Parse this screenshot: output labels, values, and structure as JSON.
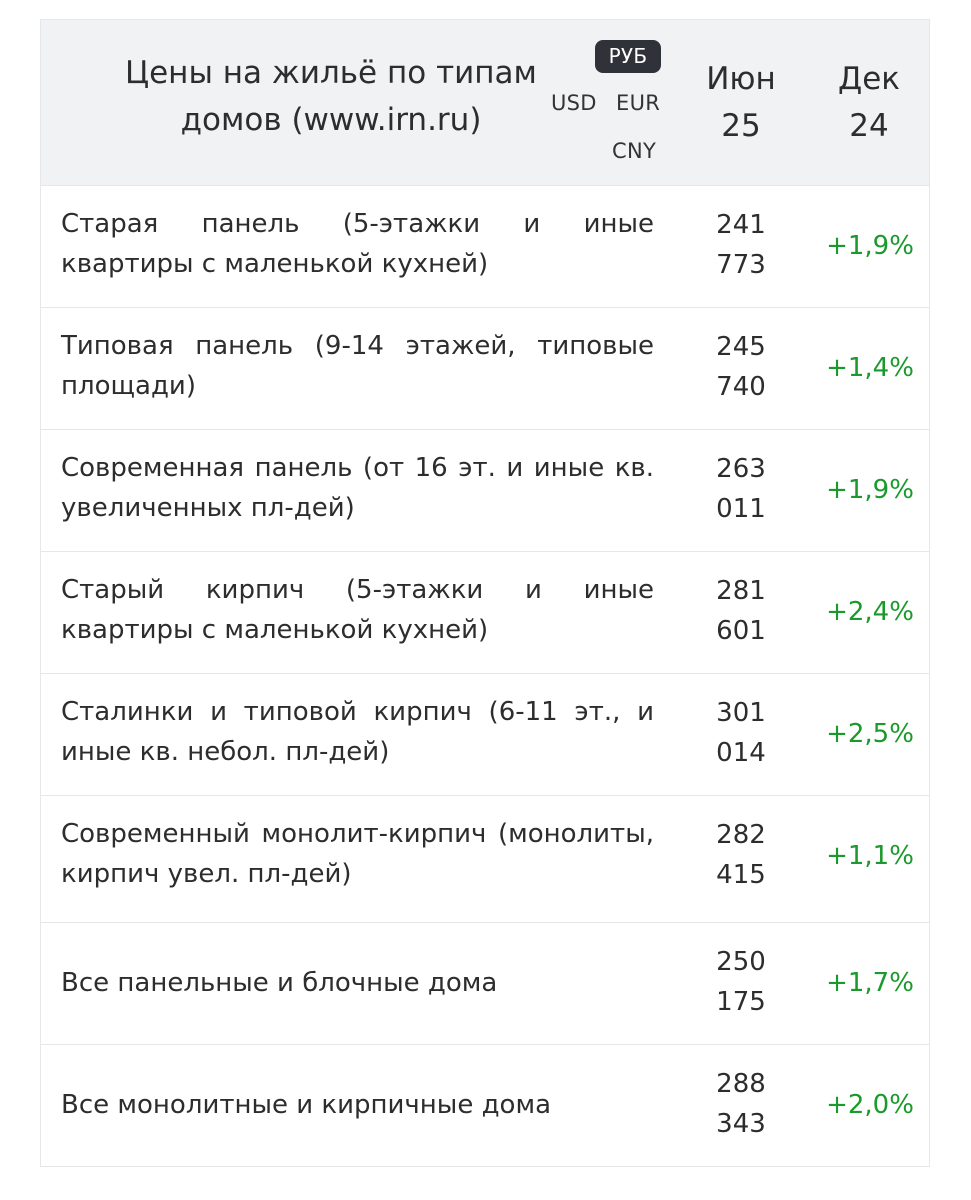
{
  "header": {
    "title": "Цены на жильё по типам домов (www.irn.ru)",
    "currencies": {
      "rub": "РУБ",
      "usd": "USD",
      "eur": "EUR",
      "cny": "CNY"
    },
    "columns": {
      "current": "Июн 25",
      "change": "Дек 24"
    }
  },
  "colors": {
    "positive_change": "#1a9a2c",
    "header_bg": "#f1f2f4",
    "active_currency_bg": "#2f3238"
  },
  "rows": [
    {
      "name": "Старая панель (5-этажки и иные квартиры с маленькой кухней)",
      "price_line1": "241",
      "price_line2": "773",
      "change": "+1,9%"
    },
    {
      "name": "Типовая панель (9-14 этажей, типовые площади)",
      "price_line1": "245",
      "price_line2": "740",
      "change": "+1,4%"
    },
    {
      "name": "Современная панель (от 16 эт. и иные кв. увеличенных пл-дей)",
      "price_line1": "263",
      "price_line2": "011",
      "change": "+1,9%"
    },
    {
      "name": "Старый кирпич (5-этажки и иные квартиры с маленькой кухней)",
      "price_line1": "281",
      "price_line2": "601",
      "change": "+2,4%"
    },
    {
      "name": "Сталинки и типовой кирпич (6-11 эт., и иные кв. небол. пл-дей)",
      "price_line1": "301",
      "price_line2": "014",
      "change": "+2,5%"
    },
    {
      "name": "Современный монолит-кирпич (монолиты, кирпич увел. пл-дей)",
      "price_line1": "282",
      "price_line2": "415",
      "change": "+1,1%"
    }
  ],
  "totals": [
    {
      "name": "Все панельные и блочные дома",
      "price_line1": "250",
      "price_line2": "175",
      "change": "+1,7%"
    },
    {
      "name": "Все монолитные и кирпичные дома",
      "price_line1": "288",
      "price_line2": "343",
      "change": "+2,0%"
    }
  ]
}
